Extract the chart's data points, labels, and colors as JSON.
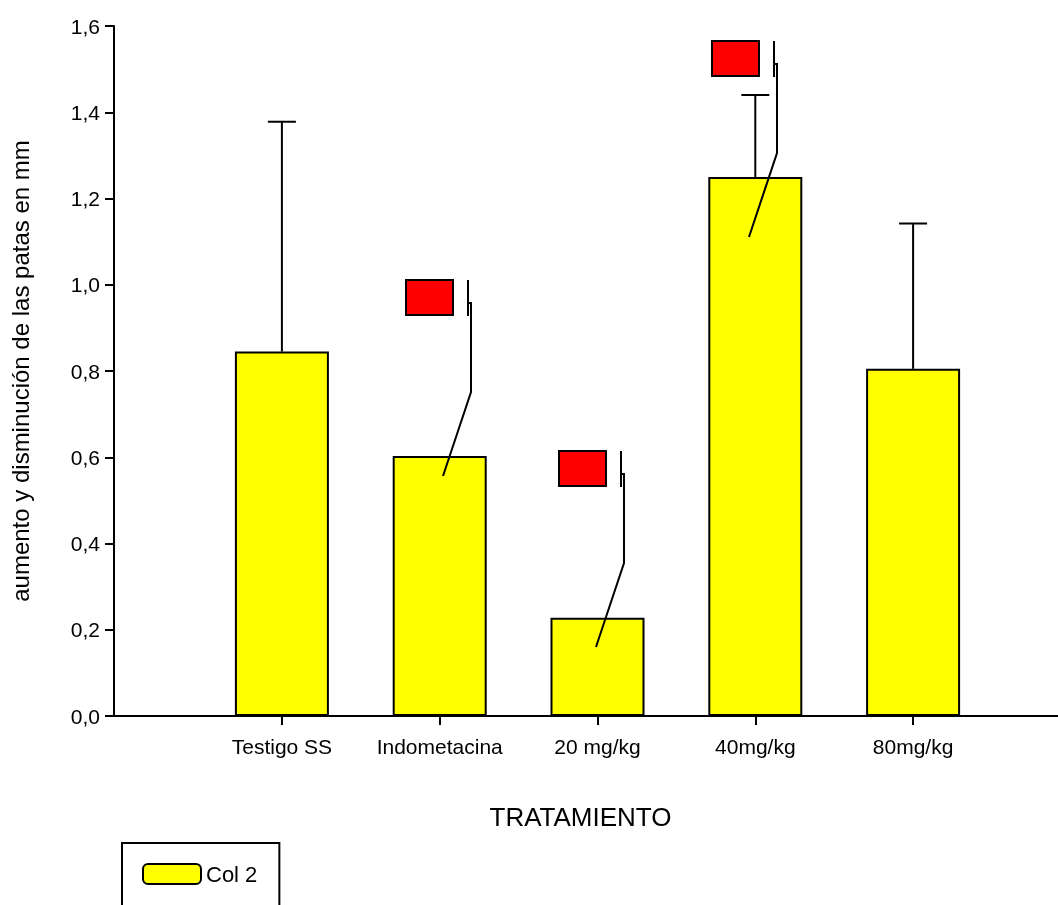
{
  "chart_data": {
    "type": "bar",
    "xlabel": "TRATAMIENTO",
    "ylabel": "aumento y disminución de las patas en mm",
    "categories": [
      "Testigo SS",
      "Indometacina",
      "20 mg/kg",
      "40mg/kg",
      "80mg/kg"
    ],
    "series": [
      {
        "name": "Col 2",
        "color": "#ffff00",
        "values": [
          0.845,
          0.603,
          0.228,
          1.25,
          0.805
        ],
        "errors": [
          [
            0.845,
            1.378
          ],
          null,
          null,
          [
            1.25,
            1.44
          ],
          [
            0.805,
            1.142
          ]
        ]
      }
    ],
    "ylim": [
      0,
      1.6
    ],
    "yticks": [
      {
        "value": 0,
        "label": "0,0"
      },
      {
        "value": 0.2,
        "label": "0,2"
      },
      {
        "value": 0.4,
        "label": "0,4"
      },
      {
        "value": 0.6,
        "label": "0,6"
      },
      {
        "value": 0.8,
        "label": "0,8"
      },
      {
        "value": 1,
        "label": "1,0"
      },
      {
        "value": 1.2,
        "label": "1,2"
      },
      {
        "value": 1.4,
        "label": "1,4"
      },
      {
        "value": 1.6,
        "label": "1,6"
      }
    ],
    "grid": false,
    "legend": "bottom left"
  }
}
